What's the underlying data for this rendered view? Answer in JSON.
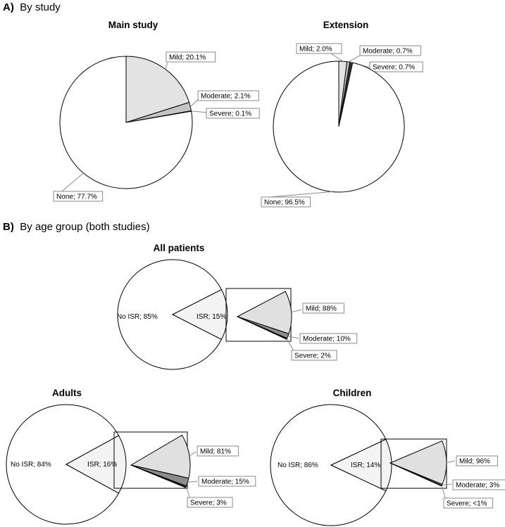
{
  "sections": {
    "a": {
      "letter": "A)",
      "text": "By study"
    },
    "b": {
      "letter": "B)",
      "text": "By age group (both studies)"
    }
  },
  "colors": {
    "none": "#ffffff",
    "mild": "#e3e3e3",
    "moderate": "#c4c4c4",
    "severe": "#333333",
    "isr": "#f3f3f3",
    "breakdown_mild": "#e0e0e0",
    "breakdown_moderate": "#8c8c8c",
    "breakdown_severe": "#222222",
    "outline": "#000000",
    "label_border": "#8a8a8a"
  },
  "chart_data": [
    {
      "type": "pie",
      "title": "Main study",
      "slices": [
        {
          "name": "Mild",
          "value": 20.1,
          "label": "Mild; 20.1%"
        },
        {
          "name": "Moderate",
          "value": 2.1,
          "label": "Moderate; 2.1%"
        },
        {
          "name": "Severe",
          "value": 0.1,
          "label": "Severe; 0.1%"
        },
        {
          "name": "None",
          "value": 77.7,
          "label": "None; 77.7%"
        }
      ]
    },
    {
      "type": "pie",
      "title": "Extension",
      "slices": [
        {
          "name": "Mild",
          "value": 2.0,
          "label": "Mild; 2.0%"
        },
        {
          "name": "Moderate",
          "value": 0.7,
          "label": "Moderate; 0.7%"
        },
        {
          "name": "Severe",
          "value": 0.7,
          "label": "Severe; 0.7%"
        },
        {
          "name": "None",
          "value": 96.5,
          "label": "None; 96.5%"
        }
      ]
    },
    {
      "type": "pie",
      "title": "All patients",
      "slices": [
        {
          "name": "No ISR",
          "value": 85,
          "label": "No ISR; 85%"
        },
        {
          "name": "ISR",
          "value": 15,
          "label": "ISR; 15%"
        }
      ],
      "breakdown": [
        {
          "name": "Mild",
          "value": 88,
          "label": "Mild; 88%"
        },
        {
          "name": "Moderate",
          "value": 10,
          "label": "Moderate; 10%"
        },
        {
          "name": "Severe",
          "value": 2,
          "label": "Severe; 2%"
        }
      ]
    },
    {
      "type": "pie",
      "title": "Adults",
      "slices": [
        {
          "name": "No ISR",
          "value": 84,
          "label": "No ISR; 84%"
        },
        {
          "name": "ISR",
          "value": 16,
          "label": "ISR; 16%"
        }
      ],
      "breakdown": [
        {
          "name": "Mild",
          "value": 81,
          "label": "Mild; 81%"
        },
        {
          "name": "Moderate",
          "value": 15,
          "label": "Moderate; 15%"
        },
        {
          "name": "Severe",
          "value": 3,
          "label": "Severe; 3%"
        }
      ]
    },
    {
      "type": "pie",
      "title": "Children",
      "slices": [
        {
          "name": "No ISR",
          "value": 86,
          "label": "No ISR; 86%"
        },
        {
          "name": "ISR",
          "value": 14,
          "label": "ISR; 14%"
        }
      ],
      "breakdown": [
        {
          "name": "Mild",
          "value": 96,
          "label": "Mild; 96%"
        },
        {
          "name": "Moderate",
          "value": 3,
          "label": "Moderate; 3%"
        },
        {
          "name": "Severe",
          "value": 1,
          "label": "Severe; <1%"
        }
      ]
    }
  ]
}
